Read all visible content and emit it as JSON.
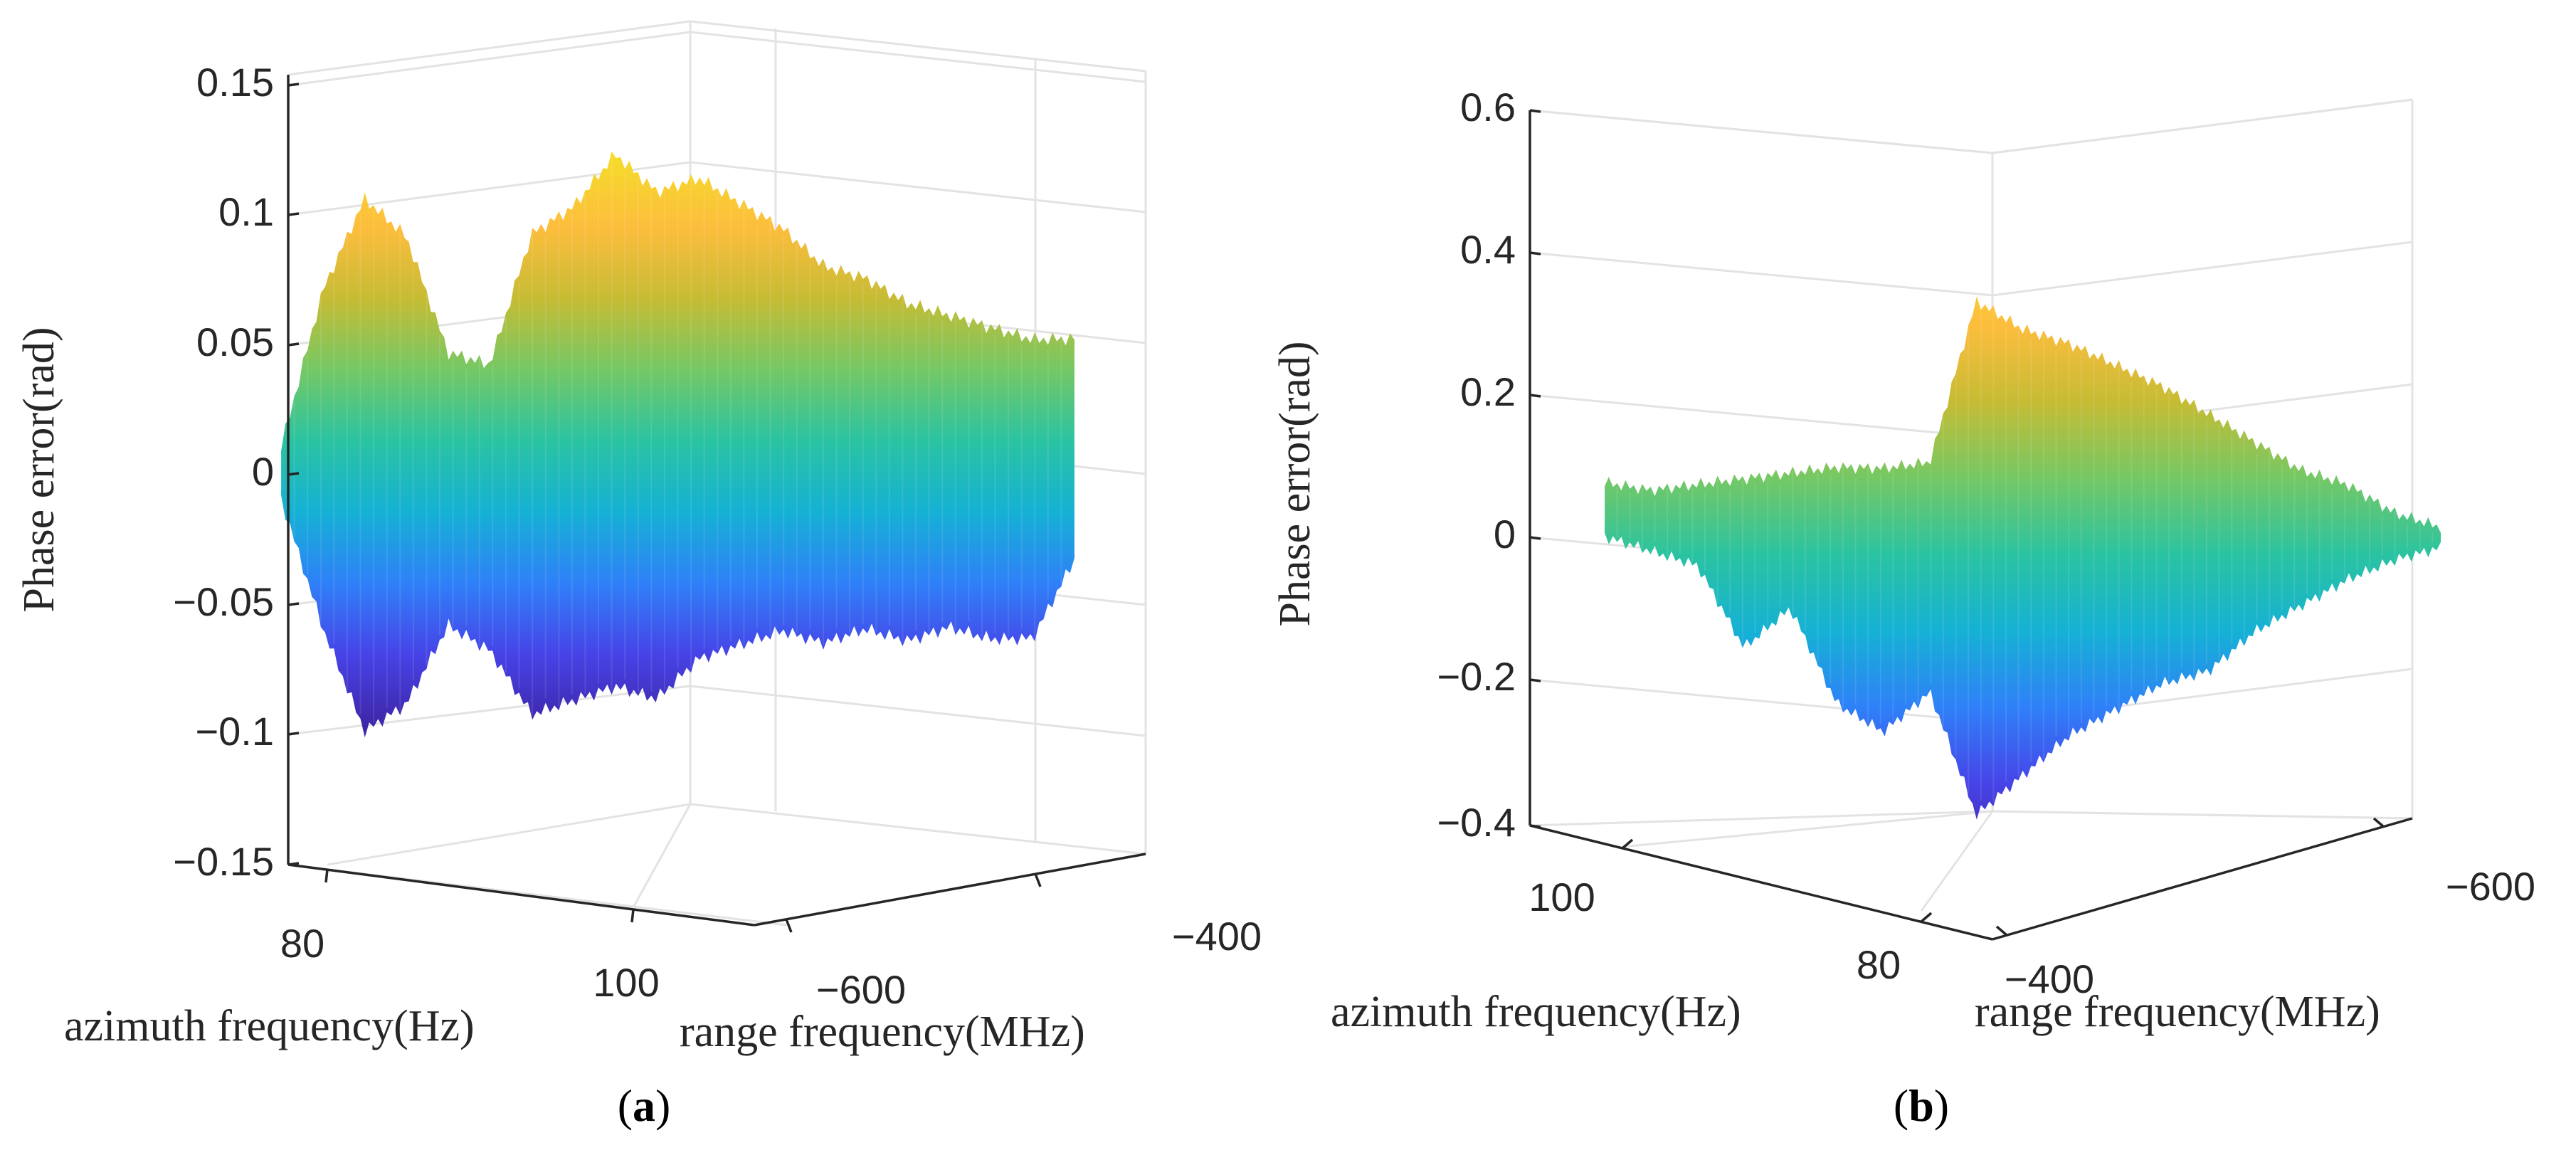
{
  "colors": {
    "colormap": [
      "#3e26a8",
      "#4743e7",
      "#2f80f8",
      "#15b1d5",
      "#2ac3a2",
      "#74c865",
      "#c6bc34",
      "#fdbd3d",
      "#f5dc2a"
    ],
    "axis": "#262626",
    "grid": "#e3e3e3"
  },
  "chart_data": [
    {
      "panel": "a",
      "type": "surface",
      "caption": {
        "open": "(",
        "letter": "a",
        "close": ")"
      },
      "zlabel": "Phase error(rad)",
      "xlabel": "azimuth frequency(Hz)",
      "ylabel": "range frequency(MHz)",
      "zlim": [
        -0.15,
        0.15
      ],
      "zticks": [
        "0.15",
        "0.1",
        "0.05",
        "0",
        "−0.05",
        "−0.1",
        "−0.15"
      ],
      "xticks": [
        "80",
        "100"
      ],
      "yticks": [
        "−600",
        "−400"
      ],
      "surface": {
        "azimuth_hz_range": [
          76,
          110
        ],
        "range_mhz_range": [
          -700,
          -400
        ],
        "upper_envelope_rad": [
          0.01,
          0.07,
          0.105,
          0.09,
          0.045,
          0.04,
          0.09,
          0.1,
          0.12,
          0.105,
          0.11,
          0.1,
          0.09,
          0.075,
          0.07,
          0.06,
          0.055,
          0.05,
          0.045,
          0.045
        ],
        "lower_envelope_rad": [
          -0.01,
          -0.06,
          -0.1,
          -0.09,
          -0.06,
          -0.07,
          -0.095,
          -0.09,
          -0.085,
          -0.09,
          -0.075,
          -0.07,
          -0.065,
          -0.07,
          -0.065,
          -0.07,
          -0.065,
          -0.07,
          -0.07,
          -0.04
        ]
      }
    },
    {
      "panel": "b",
      "type": "surface",
      "caption": {
        "open": "(",
        "letter": "b",
        "close": ")"
      },
      "zlabel": "Phase error(rad)",
      "xlabel": "azimuth frequency(Hz)",
      "ylabel": "range frequency(MHz)",
      "zlim": [
        -0.4,
        0.6
      ],
      "zticks": [
        "0.6",
        "0.4",
        "0.2",
        "0",
        "−0.2",
        "−0.4"
      ],
      "xticks": [
        "100",
        "80"
      ],
      "yticks": [
        "−400",
        "−600"
      ],
      "surface": {
        "azimuth_hz_range": [
          76,
          110
        ],
        "range_mhz_range": [
          -700,
          -400
        ],
        "upper_envelope_rad": [
          0.06,
          0.05,
          0.06,
          0.07,
          0.08,
          0.09,
          0.09,
          0.1,
          0.34,
          0.3,
          0.28,
          0.25,
          0.22,
          0.18,
          0.14,
          0.1,
          0.08,
          0.04,
          0.02
        ],
        "lower_envelope_rad": [
          -0.02,
          -0.04,
          -0.06,
          -0.18,
          -0.12,
          -0.26,
          -0.3,
          -0.24,
          -0.42,
          -0.36,
          -0.3,
          -0.26,
          -0.22,
          -0.2,
          -0.14,
          -0.1,
          -0.06,
          -0.03,
          -0.01
        ]
      }
    }
  ]
}
